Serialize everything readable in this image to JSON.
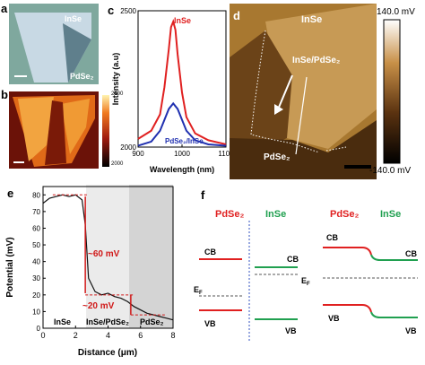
{
  "panel_a": {
    "letter": "a",
    "label_top": "InSe",
    "label_bottom": "PdSe₂"
  },
  "panel_b": {
    "letter": "b",
    "colorbar_max": "2400",
    "colorbar_min": "2000"
  },
  "panel_c": {
    "letter": "c",
    "xlabel": "Wavelength (nm)",
    "ylabel": "Intensity (a.u)",
    "legend_inse": "InSe",
    "legend_pdse2": "PdSe₂/InSe",
    "colors": {
      "inse": "#e02020",
      "pdse2": "#2030b0"
    },
    "chart_data": {
      "type": "line",
      "xlim": [
        900,
        1100
      ],
      "ylim": [
        2000,
        2500
      ],
      "x_ticks": [
        "900",
        "1000",
        "1100"
      ],
      "y_ticks": [
        "2000",
        "2500"
      ],
      "series": [
        {
          "name": "InSe",
          "x": [
            900,
            930,
            950,
            960,
            970,
            975,
            980,
            985,
            990,
            1000,
            1010,
            1030,
            1060,
            1100
          ],
          "values": [
            2030,
            2060,
            2120,
            2220,
            2360,
            2440,
            2460,
            2430,
            2340,
            2200,
            2110,
            2050,
            2025,
            2010
          ]
        },
        {
          "name": "PdSe₂/InSe",
          "x": [
            900,
            930,
            950,
            960,
            970,
            980,
            990,
            1000,
            1010,
            1030,
            1060,
            1100
          ],
          "values": [
            2005,
            2020,
            2060,
            2100,
            2140,
            2160,
            2140,
            2100,
            2060,
            2025,
            2010,
            2005
          ]
        }
      ]
    }
  },
  "panel_d": {
    "letter": "d",
    "label_inse": "InSe",
    "label_hetero": "InSe/PdSe₂",
    "label_pdse2": "PdSe₂",
    "colorbar_max": "140.0 mV",
    "colorbar_min": "-140.0 mV"
  },
  "panel_e": {
    "letter": "e",
    "xlabel": "Distance (μm)",
    "ylabel": "Potential (mV)",
    "annot_60": "~60 mV",
    "annot_20": "~20 mV",
    "region_inse": "InSe",
    "region_hetero": "InSe/PdSe₂",
    "region_pdse2": "PdSe₂",
    "chart_data": {
      "type": "line",
      "xlim": [
        0,
        8
      ],
      "ylim": [
        0,
        85
      ],
      "x_ticks": [
        "0",
        "2",
        "4",
        "6",
        "8"
      ],
      "y_ticks": [
        "0",
        "10",
        "20",
        "30",
        "40",
        "50",
        "60",
        "70",
        "80"
      ],
      "series": [
        {
          "name": "",
          "x": [
            0,
            0.4,
            0.8,
            1.2,
            1.6,
            2.0,
            2.4,
            2.6,
            2.8,
            3.2,
            3.6,
            4.0,
            4.4,
            4.8,
            5.2,
            5.6,
            6.0,
            6.4,
            6.8,
            7.2,
            7.6,
            8.0
          ],
          "values": [
            75,
            78,
            79,
            80,
            79,
            80,
            77,
            62,
            30,
            22,
            20,
            21,
            19,
            18,
            16,
            13,
            11,
            9,
            8,
            7,
            6,
            5
          ]
        }
      ]
    }
  },
  "panel_f": {
    "letter": "f",
    "left": {
      "title_pdse2": "PdSe₂",
      "title_inse": "InSe",
      "cb_left": "CB",
      "vb_left": "VB",
      "cb_right": "CB",
      "vb_right": "VB",
      "ef_left": "E",
      "ef_right": "E",
      "ef_sub": "F"
    },
    "right": {
      "title_pdse2": "PdSe₂",
      "title_inse": "InSe",
      "cb_left": "CB",
      "vb_left": "VB",
      "cb_right": "CB",
      "vb_right": "VB"
    },
    "colors": {
      "pdse2": "#e02020",
      "inse": "#20a050"
    }
  }
}
